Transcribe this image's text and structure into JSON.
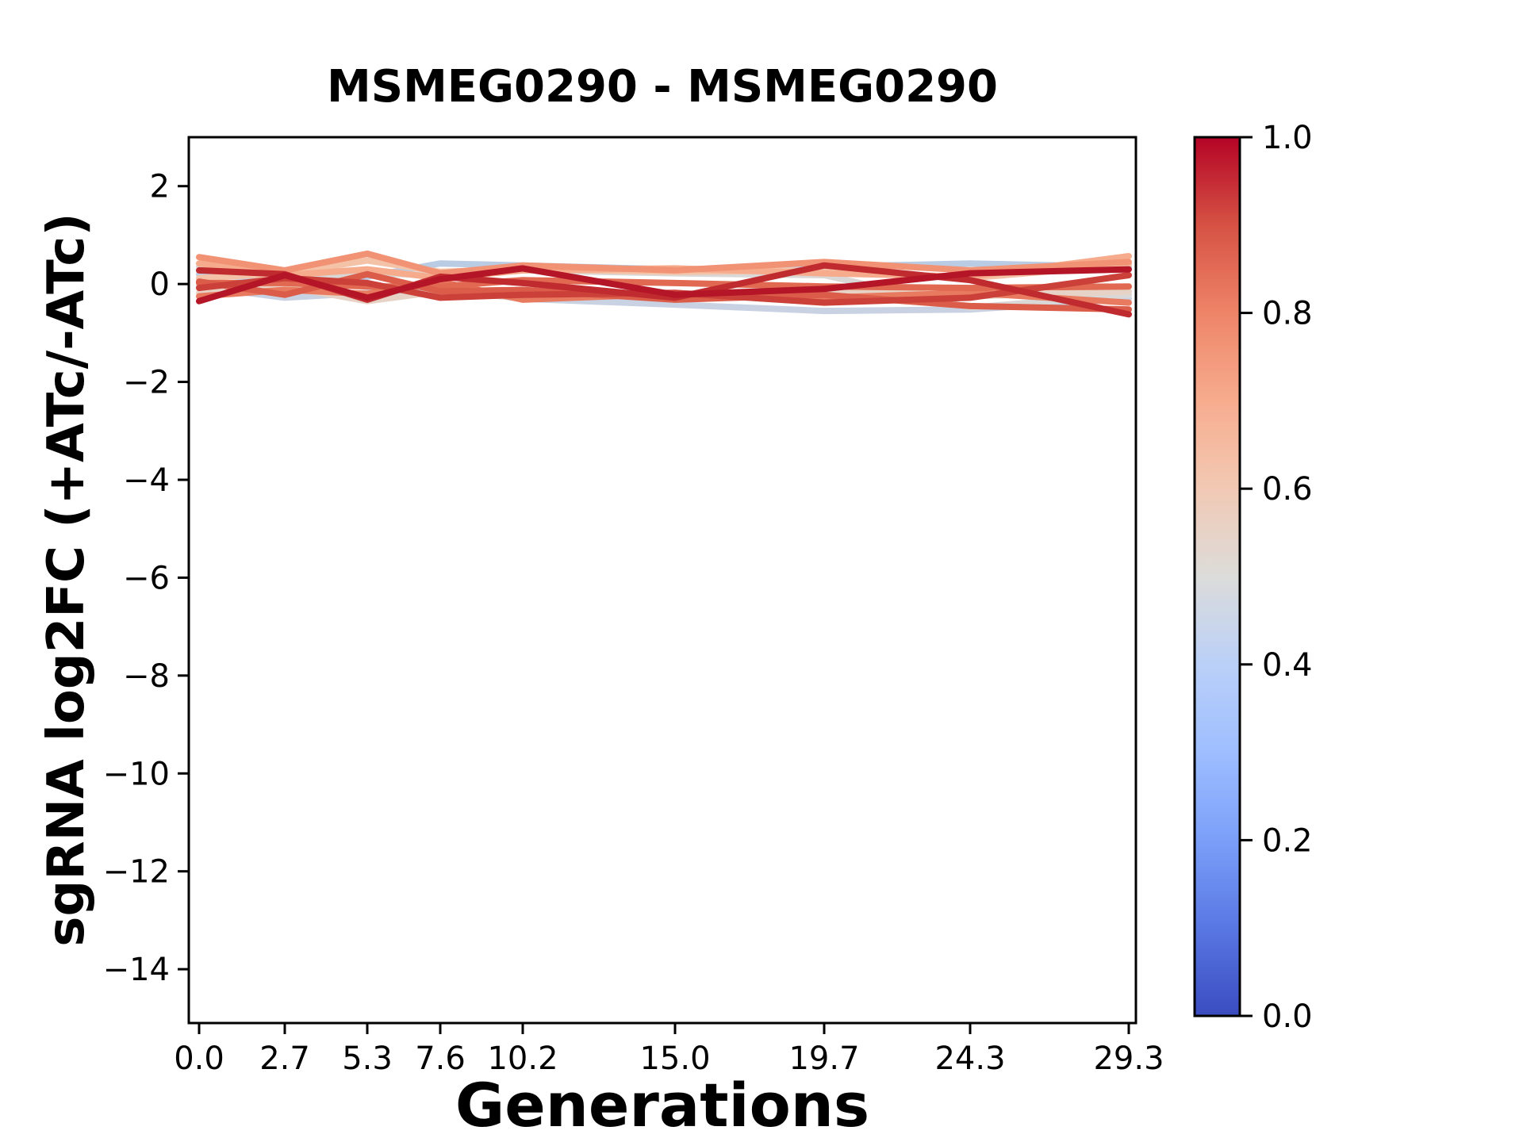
{
  "figure": {
    "background": "#ffffff"
  },
  "chart_data": {
    "type": "line",
    "title": "MSMEG0290 - MSMEG0290",
    "xlabel": "Generations",
    "ylabel": "sgRNA log2FC (+ATc/-ATc)",
    "grid": false,
    "x": [
      0.0,
      2.7,
      5.3,
      7.6,
      10.2,
      15.0,
      19.7,
      24.3,
      29.3
    ],
    "xtick_labels": [
      "0.0",
      "2.7",
      "5.3",
      "7.6",
      "10.2",
      "15.0",
      "19.7",
      "24.3",
      "29.3"
    ],
    "ytick_values": [
      2,
      0,
      -2,
      -4,
      -6,
      -8,
      -10,
      -12,
      -14
    ],
    "ytick_labels": [
      "2",
      "0",
      "−2",
      "−4",
      "−6",
      "−8",
      "−10",
      "−12",
      "−14"
    ],
    "xlim": [
      -0.325,
      29.525
    ],
    "ylim": [
      -15.1,
      3.0
    ],
    "axis_color": "#000000",
    "line_width": 8,
    "series": [
      {
        "id": "line-1",
        "cmap_value": 0.4,
        "color": "#b9cce4",
        "values": [
          0.2,
          0.1,
          0.15,
          0.42,
          0.38,
          0.3,
          0.35,
          0.42,
          0.35
        ]
      },
      {
        "id": "line-2",
        "cmap_value": 0.44,
        "color": "#c9d2e3",
        "values": [
          -0.05,
          -0.28,
          -0.18,
          -0.1,
          -0.3,
          -0.42,
          -0.55,
          -0.52,
          -0.3
        ]
      },
      {
        "id": "line-3",
        "cmap_value": 0.5,
        "color": "#d9d8d6",
        "values": [
          0.35,
          0.12,
          0.22,
          0.18,
          0.28,
          0.22,
          0.18,
          -0.48,
          -0.22
        ]
      },
      {
        "id": "line-4",
        "cmap_value": 0.56,
        "color": "#e7d3c6",
        "values": [
          -0.18,
          -0.05,
          -0.35,
          -0.15,
          -0.28,
          -0.2,
          -0.1,
          -0.25,
          -0.15
        ]
      },
      {
        "id": "line-5",
        "cmap_value": 0.63,
        "color": "#f4c3a7",
        "values": [
          0.12,
          0.22,
          0.48,
          0.25,
          0.3,
          0.25,
          0.28,
          0.12,
          0.4
        ]
      },
      {
        "id": "line-6",
        "cmap_value": 0.7,
        "color": "#f5ab8c",
        "values": [
          0.42,
          0.18,
          0.3,
          0.12,
          0.28,
          0.32,
          0.22,
          0.15,
          0.57
        ]
      },
      {
        "id": "line-7",
        "cmap_value": 0.76,
        "color": "#f29274",
        "values": [
          0.55,
          0.28,
          0.62,
          0.22,
          0.38,
          0.28,
          0.45,
          0.28,
          0.45
        ]
      },
      {
        "id": "line-8",
        "cmap_value": 0.82,
        "color": "#e87a5f",
        "values": [
          -0.25,
          -0.12,
          -0.2,
          0.05,
          -0.32,
          -0.2,
          -0.28,
          -0.18,
          -0.38
        ]
      },
      {
        "id": "line-9",
        "cmap_value": 0.85,
        "color": "#e16952",
        "values": [
          0.02,
          0.02,
          -0.05,
          -0.05,
          0.08,
          0.02,
          -0.05,
          -0.08,
          -0.05
        ]
      },
      {
        "id": "line-10",
        "cmap_value": 0.88,
        "color": "#da5c49",
        "values": [
          0.05,
          -0.22,
          0.2,
          -0.15,
          -0.12,
          -0.32,
          -0.22,
          -0.45,
          -0.52
        ]
      },
      {
        "id": "line-11",
        "cmap_value": 0.93,
        "color": "#cb413a",
        "values": [
          -0.08,
          0.12,
          0.02,
          -0.28,
          -0.22,
          -0.18,
          -0.38,
          -0.28,
          0.18
        ]
      },
      {
        "id": "line-12",
        "cmap_value": 0.97,
        "color": "#bf2b2f",
        "values": [
          0.28,
          0.2,
          -0.32,
          0.15,
          0.02,
          -0.28,
          0.38,
          0.08,
          -0.62
        ]
      },
      {
        "id": "line-13",
        "cmap_value": 1.0,
        "color": "#b41527",
        "values": [
          -0.35,
          0.18,
          -0.28,
          0.1,
          0.32,
          -0.22,
          -0.1,
          0.22,
          0.3
        ]
      }
    ],
    "colorbar": {
      "cmap": "coolwarm",
      "range": [
        0.0,
        1.0
      ],
      "tick_labels": [
        "0.0",
        "0.2",
        "0.4",
        "0.6",
        "0.8",
        "1.0"
      ],
      "tick_values": [
        0.0,
        0.2,
        0.4,
        0.6,
        0.8,
        1.0
      ],
      "gradient": [
        [
          0.0,
          "#3a4cc0"
        ],
        [
          0.1,
          "#5977e3"
        ],
        [
          0.2,
          "#7b9ff9"
        ],
        [
          0.3,
          "#9ebeff"
        ],
        [
          0.4,
          "#bad0f8"
        ],
        [
          0.5,
          "#dcdcda"
        ],
        [
          0.6,
          "#f2c9b4"
        ],
        [
          0.7,
          "#f7ac8e"
        ],
        [
          0.8,
          "#ee8468"
        ],
        [
          0.9,
          "#d65244"
        ],
        [
          1.0,
          "#b40426"
        ]
      ]
    }
  }
}
